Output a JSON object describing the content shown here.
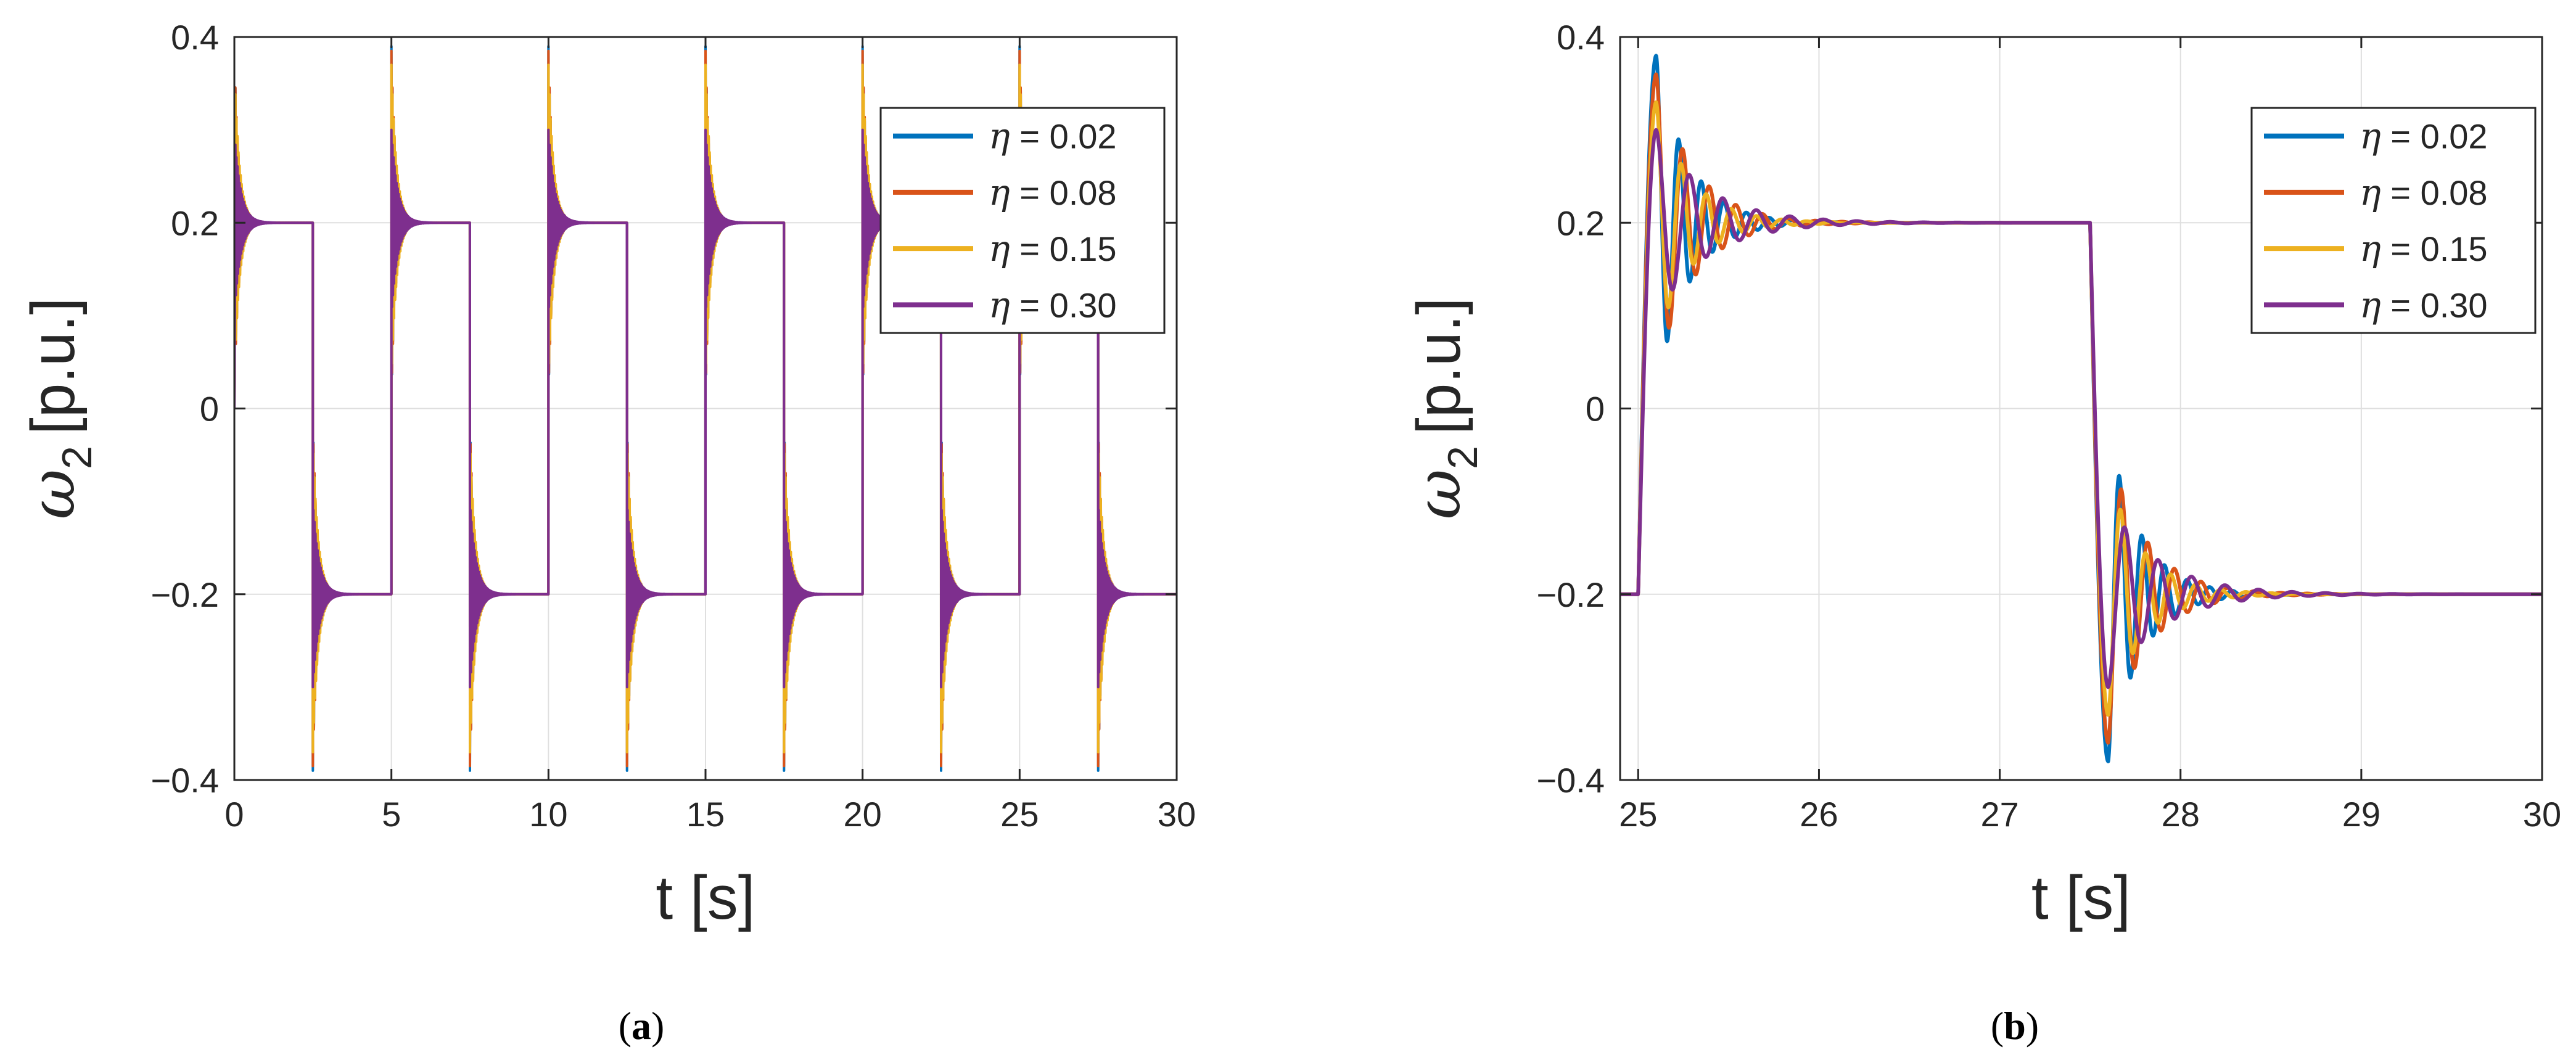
{
  "chart_data": [
    {
      "type": "line",
      "panel": "a",
      "caption_letter": "a",
      "title": "",
      "xlabel": "t [s]",
      "ylabel_symbol": "ω",
      "ylabel_subscript": "2",
      "ylabel_unit": "[p.u.]",
      "xlim": [
        0,
        30
      ],
      "ylim": [
        -0.4,
        0.4
      ],
      "xticks": [
        0,
        5,
        10,
        15,
        20,
        25,
        30
      ],
      "xtick_labels": [
        "0",
        "5",
        "10",
        "15",
        "20",
        "25",
        "30"
      ],
      "yticks": [
        -0.4,
        -0.2,
        0,
        0.2,
        0.4
      ],
      "ytick_labels": [
        "−0.4",
        "−0.2",
        "0",
        "0.2",
        "0.4"
      ],
      "grid": true,
      "legend_position": "top-right",
      "signal": {
        "description": "square-wave speed reference ±0.2 p.u., period 5 s, with damped oscillation after each step",
        "setpoint_high": 0.2,
        "setpoint_low": -0.2,
        "step_times": [
          0,
          2.5,
          5,
          7.5,
          10,
          12.5,
          15,
          17.5,
          20,
          22.5,
          25,
          27.5
        ],
        "ringing_frequency_hz": 30
      },
      "series": [
        {
          "name": "η = 0.02",
          "symbol": "η",
          "label_rest": " = 0.02",
          "color": "#0072BD",
          "eta": 0.02,
          "peak_overshoot": 0.19,
          "decay_rate": 8
        },
        {
          "name": "η = 0.08",
          "symbol": "η",
          "label_rest": " = 0.08",
          "color": "#D95319",
          "eta": 0.08,
          "peak_overshoot": 0.185,
          "decay_rate": 7
        },
        {
          "name": "η = 0.15",
          "symbol": "η",
          "label_rest": " = 0.15",
          "color": "#EDB120",
          "eta": 0.15,
          "peak_overshoot": 0.17,
          "decay_rate": 6
        },
        {
          "name": "η = 0.30",
          "symbol": "η",
          "label_rest": " = 0.30",
          "color": "#7E2F8E",
          "eta": 0.3,
          "peak_overshoot": 0.1,
          "decay_rate": 5
        }
      ]
    },
    {
      "type": "line",
      "panel": "b",
      "caption_letter": "b",
      "title": "",
      "xlabel": "t [s]",
      "ylabel_symbol": "ω",
      "ylabel_subscript": "2",
      "ylabel_unit": "[p.u.]",
      "xlim": [
        24.9,
        30
      ],
      "ylim": [
        -0.4,
        0.4
      ],
      "xticks": [
        25,
        26,
        27,
        28,
        29,
        30
      ],
      "xtick_labels": [
        "25",
        "26",
        "27",
        "28",
        "29",
        "30"
      ],
      "yticks": [
        -0.4,
        -0.2,
        0,
        0.2,
        0.4
      ],
      "ytick_labels": [
        "−0.4",
        "−0.2",
        "0",
        "0.2",
        "0.4"
      ],
      "grid": true,
      "legend_position": "top-right",
      "signal": {
        "description": "zoomed step response: step up at 25 s, step down at 27.5 s",
        "setpoint_high": 0.2,
        "setpoint_low": -0.2,
        "step_times": [
          25,
          27.5
        ],
        "initial_value": -0.2,
        "ramp_time_s": 0.1
      },
      "series": [
        {
          "name": "η = 0.02",
          "symbol": "η",
          "label_rest": " = 0.02",
          "color": "#0072BD",
          "eta": 0.02,
          "first_peak": 0.38,
          "freq_hz": 8.0,
          "decay_rate": 5.6
        },
        {
          "name": "η = 0.08",
          "symbol": "η",
          "label_rest": " = 0.08",
          "color": "#D95319",
          "eta": 0.08,
          "first_peak": 0.36,
          "freq_hz": 6.8,
          "decay_rate": 4.8
        },
        {
          "name": "η = 0.15",
          "symbol": "η",
          "label_rest": " = 0.15",
          "color": "#EDB120",
          "eta": 0.15,
          "first_peak": 0.33,
          "freq_hz": 7.2,
          "decay_rate": 5.2
        },
        {
          "name": "η = 0.30",
          "symbol": "η",
          "label_rest": " = 0.30",
          "color": "#7E2F8E",
          "eta": 0.3,
          "first_peak": 0.3,
          "freq_hz": 5.4,
          "decay_rate": 3.6
        }
      ]
    }
  ]
}
